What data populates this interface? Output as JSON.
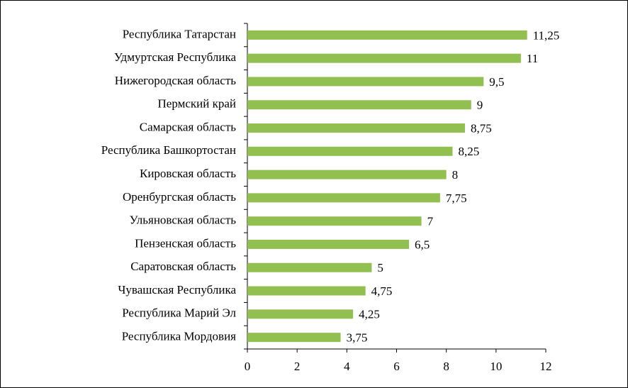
{
  "chart_data": {
    "type": "bar",
    "orientation": "horizontal",
    "categories": [
      "Республика Татарстан",
      "Удмуртская Республика",
      "Нижегородская область",
      "Пермский край",
      "Самарская область",
      "Республика Башкортостан",
      "Кировская область",
      "Оренбургская область",
      "Ульяновская область",
      "Пензенская область",
      "Саратовская область",
      "Чувашская Республика",
      "Республика Марий Эл",
      "Республика Мордовия"
    ],
    "values": [
      11.25,
      11,
      9.5,
      9,
      8.75,
      8.25,
      8,
      7.75,
      7,
      6.5,
      5,
      4.75,
      4.25,
      3.75
    ],
    "value_labels": [
      "11,25",
      "11",
      "9,5",
      "9",
      "8,75",
      "8,25",
      "8",
      "7,75",
      "7",
      "6,5",
      "5",
      "4,75",
      "4,25",
      "3,75"
    ],
    "color": "#92c050",
    "xlim": [
      0,
      12
    ],
    "xticks": [
      0,
      2,
      4,
      6,
      8,
      10,
      12
    ]
  }
}
